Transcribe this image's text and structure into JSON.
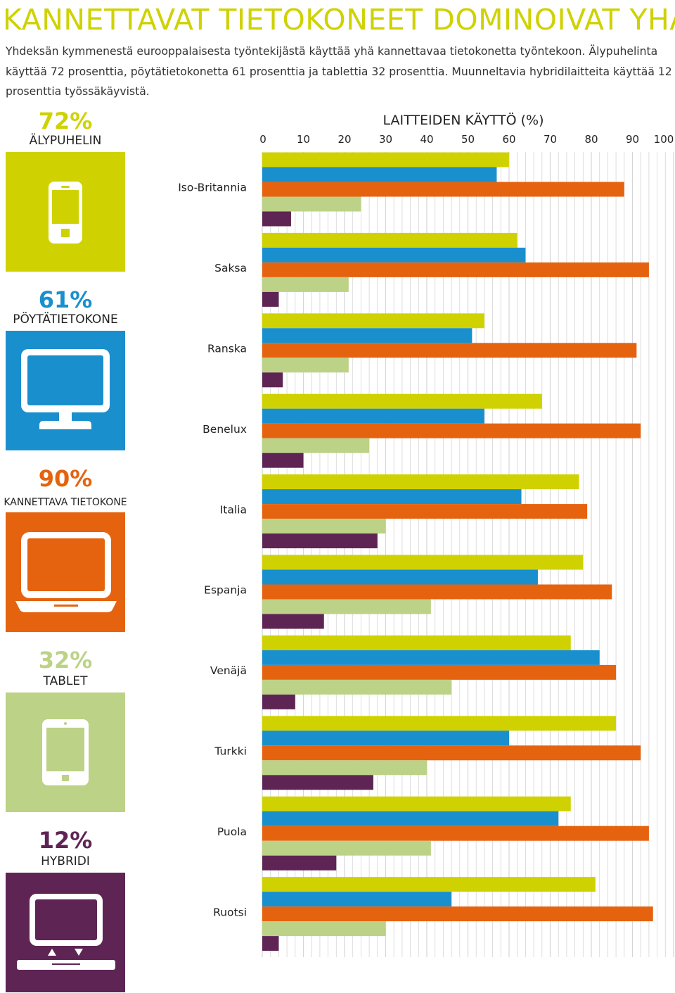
{
  "headline": "KANNETTAVAT TIETOKONEET DOMINOIVAT YHÄ",
  "intro": "Yhdeksän kymmenestä eurooppalaisesta työntekijästä käyttää yhä kannettavaa tietokonetta työntekoon. Älypuhelinta käyttää 72 prosenttia, pöytätietokonetta 61 prosenttia ja tablettia 32 prosenttia. Muunneltavia hybridilaitteita käyttää 12 prosenttia työssäkäyvistä.",
  "colors": {
    "headline": "#cfd200",
    "smartphone": "#cfd200",
    "desktop": "#1a8fce",
    "laptop": "#e5630f",
    "tablet": "#bcd286",
    "hybrid": "#5e2554",
    "gridline": "#d6d6d6"
  },
  "devices": [
    {
      "key": "smartphone",
      "percent": "72%",
      "label": "ÄLYPUHELIN",
      "icon": "smartphone-icon",
      "color": "#cfd200"
    },
    {
      "key": "desktop",
      "percent": "61%",
      "label": "PÖYTÄTIETOKONE",
      "icon": "desktop-monitor-icon",
      "color": "#1a8fce"
    },
    {
      "key": "laptop",
      "percent": "90%",
      "label": "KANNETTAVA TIETOKONE",
      "icon": "laptop-icon",
      "color": "#e5630f"
    },
    {
      "key": "tablet",
      "percent": "32%",
      "label": "TABLET",
      "icon": "tablet-icon",
      "color": "#bcd286"
    },
    {
      "key": "hybrid",
      "percent": "12%",
      "label": "HYBRIDI",
      "icon": "hybrid-device-icon",
      "color": "#5e2554"
    }
  ],
  "chart_data": {
    "type": "bar",
    "orientation": "horizontal",
    "title": "LAITTEIDEN KÄYTTÖ  (%)",
    "xlabel": "",
    "ylabel": "",
    "xlim": [
      0,
      100
    ],
    "xticks": [
      0,
      10,
      20,
      30,
      40,
      50,
      60,
      70,
      80,
      90,
      100
    ],
    "grid": true,
    "categories": [
      "Iso-Britannia",
      "Saksa",
      "Ranska",
      "Benelux",
      "Italia",
      "Espanja",
      "Venäjä",
      "Turkki",
      "Puola",
      "Ruotsi"
    ],
    "series": [
      {
        "key": "smartphone",
        "color": "#cfd200",
        "values": [
          60,
          62,
          54,
          68,
          77,
          78,
          75,
          86,
          75,
          81
        ]
      },
      {
        "key": "desktop",
        "color": "#1a8fce",
        "values": [
          57,
          64,
          51,
          54,
          63,
          67,
          82,
          60,
          72,
          46
        ]
      },
      {
        "key": "laptop",
        "color": "#e5630f",
        "values": [
          88,
          94,
          91,
          92,
          79,
          85,
          86,
          92,
          94,
          95
        ]
      },
      {
        "key": "tablet",
        "color": "#bcd286",
        "values": [
          24,
          21,
          21,
          26,
          30,
          41,
          46,
          40,
          41,
          30
        ]
      },
      {
        "key": "hybrid",
        "color": "#5e2554",
        "values": [
          7,
          4,
          5,
          10,
          28,
          15,
          8,
          27,
          18,
          4
        ]
      }
    ]
  }
}
